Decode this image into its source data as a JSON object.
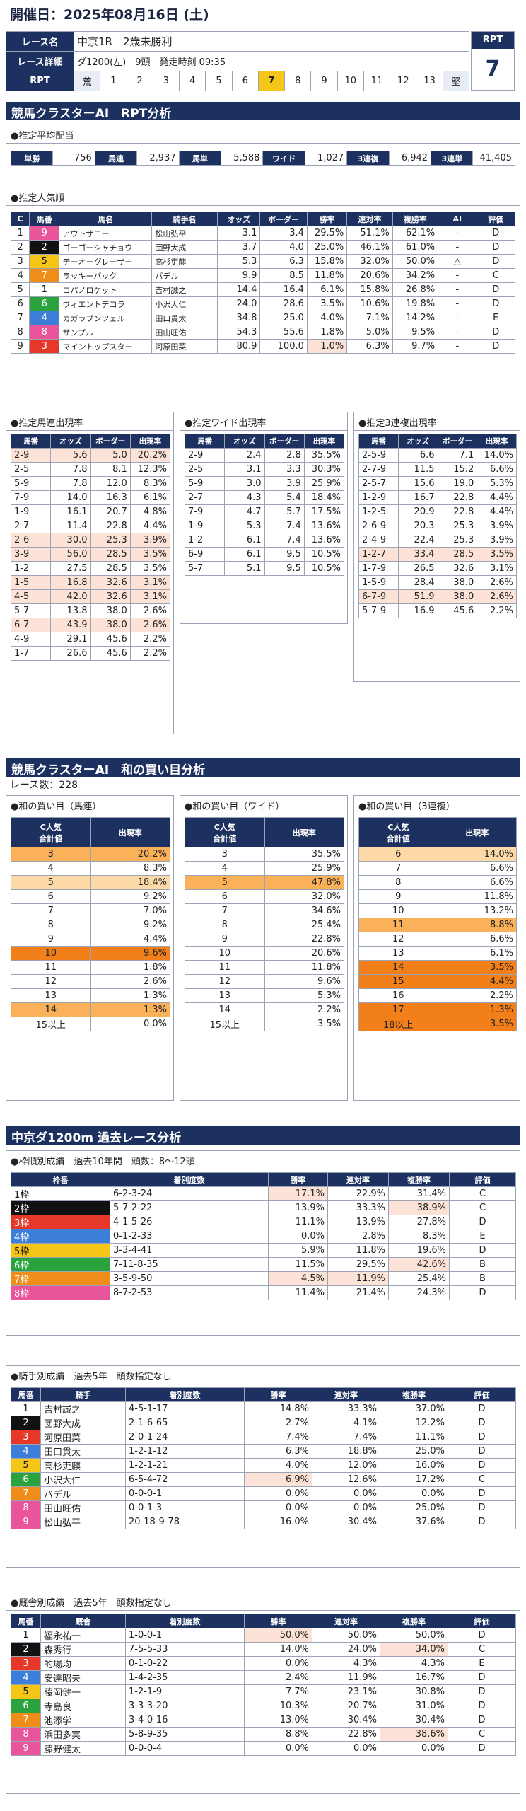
{
  "header": {
    "title": "開催日：2025年08月16日 (土)"
  },
  "race": {
    "label_name": "レース名",
    "name": "中京1R　2歳未勝利",
    "label_detail": "レース詳細",
    "detail": "ダ1200(左)　9頭　発走時刻 09:35",
    "label_rpt": "RPT",
    "scale": [
      "荒",
      "1",
      "2",
      "3",
      "4",
      "5",
      "6",
      "7",
      "8",
      "9",
      "10",
      "11",
      "12",
      "13",
      "堅"
    ],
    "rpt_head": "RPT",
    "rpt_value": "7",
    "selected": "7"
  },
  "colors": {
    "navy": "#1c3160",
    "waku": {
      "1": "#ffffff",
      "2": "#111111",
      "3": "#e53828",
      "4": "#3d7fd8",
      "5": "#f5c518",
      "6": "#2aa33f",
      "7": "#f08c1a",
      "8": "#e8559a"
    }
  },
  "rpt_section": {
    "title": "競馬クラスターAI　RPT分析",
    "payout_title": "●推定平均配当",
    "payout": [
      [
        "単勝",
        "756"
      ],
      [
        "馬連",
        "2,937"
      ],
      [
        "馬単",
        "5,588"
      ],
      [
        "ワイド",
        "1,027"
      ],
      [
        "3連複",
        "6,942"
      ],
      [
        "3連単",
        "41,405"
      ]
    ],
    "pop_title": "●推定人気順",
    "pop_headers": [
      "C",
      "馬番",
      "馬名",
      "騎手名",
      "オッズ",
      "ボーダー",
      "勝率",
      "連対率",
      "複勝率",
      "AI",
      "評価"
    ],
    "pop_rows": [
      [
        "1",
        "9",
        "アウトザロー",
        "松山弘平",
        "3.1",
        "3.4",
        "29.5%",
        "51.1%",
        "62.1%",
        "-",
        "D"
      ],
      [
        "2",
        "2",
        "ゴーゴーシャチョウ",
        "団野大成",
        "3.7",
        "4.0",
        "25.0%",
        "46.1%",
        "61.0%",
        "-",
        "D"
      ],
      [
        "3",
        "5",
        "テーオーグレーザー",
        "高杉吏麒",
        "5.3",
        "6.3",
        "15.8%",
        "32.0%",
        "50.0%",
        "△",
        "D"
      ],
      [
        "4",
        "7",
        "ラッキーバック",
        "バデル",
        "9.9",
        "8.5",
        "11.8%",
        "20.6%",
        "34.2%",
        "-",
        "C"
      ],
      [
        "5",
        "1",
        "コパノロケット",
        "吉村誠之",
        "14.4",
        "16.4",
        "6.1%",
        "15.8%",
        "26.8%",
        "-",
        "D"
      ],
      [
        "6",
        "6",
        "ヴィエントデコラ",
        "小沢大仁",
        "24.0",
        "28.6",
        "3.5%",
        "10.6%",
        "19.8%",
        "-",
        "D"
      ],
      [
        "7",
        "4",
        "カガラブンツェル",
        "田口貫太",
        "34.8",
        "25.0",
        "4.0%",
        "7.1%",
        "14.2%",
        "-",
        "E"
      ],
      [
        "8",
        "8",
        "サンプル",
        "田山旺佑",
        "54.3",
        "55.6",
        "1.8%",
        "5.0%",
        "9.5%",
        "-",
        "D"
      ],
      [
        "9",
        "3",
        "マイントップスター",
        "河原田菜",
        "80.9",
        "100.0",
        "1.0%",
        "6.3%",
        "9.7%",
        "-",
        "D"
      ]
    ],
    "umaren_title": "●推定馬連出現率",
    "wide_title": "●推定ワイド出現率",
    "sanfuku_title": "●推定3連複出現率",
    "mini_headers": [
      "馬番",
      "オッズ",
      "ボーダー",
      "出現率"
    ],
    "umaren": [
      [
        "2-9",
        "5.6",
        "5.0",
        "20.2%"
      ],
      [
        "2-5",
        "7.8",
        "8.1",
        "12.3%"
      ],
      [
        "5-9",
        "7.8",
        "12.0",
        "8.3%"
      ],
      [
        "7-9",
        "14.0",
        "16.3",
        "6.1%"
      ],
      [
        "1-9",
        "16.1",
        "20.7",
        "4.8%"
      ],
      [
        "2-7",
        "11.4",
        "22.8",
        "4.4%"
      ],
      [
        "2-6",
        "30.0",
        "25.3",
        "3.9%"
      ],
      [
        "3-9",
        "56.0",
        "28.5",
        "3.5%"
      ],
      [
        "1-2",
        "27.5",
        "28.5",
        "3.5%"
      ],
      [
        "1-5",
        "16.8",
        "32.6",
        "3.1%"
      ],
      [
        "4-5",
        "42.0",
        "32.6",
        "3.1%"
      ],
      [
        "5-7",
        "13.8",
        "38.0",
        "2.6%"
      ],
      [
        "6-7",
        "43.9",
        "38.0",
        "2.6%"
      ],
      [
        "4-9",
        "29.1",
        "45.6",
        "2.2%"
      ],
      [
        "1-7",
        "26.6",
        "45.6",
        "2.2%"
      ]
    ],
    "wide": [
      [
        "2-9",
        "2.4",
        "2.8",
        "35.5%"
      ],
      [
        "2-5",
        "3.1",
        "3.3",
        "30.3%"
      ],
      [
        "5-9",
        "3.0",
        "3.9",
        "25.9%"
      ],
      [
        "2-7",
        "4.3",
        "5.4",
        "18.4%"
      ],
      [
        "7-9",
        "4.7",
        "5.7",
        "17.5%"
      ],
      [
        "1-9",
        "5.3",
        "7.4",
        "13.6%"
      ],
      [
        "1-2",
        "6.1",
        "7.4",
        "13.6%"
      ],
      [
        "6-9",
        "6.1",
        "9.5",
        "10.5%"
      ],
      [
        "5-7",
        "5.1",
        "9.5",
        "10.5%"
      ]
    ],
    "sanfuku": [
      [
        "2-5-9",
        "6.6",
        "7.1",
        "14.0%"
      ],
      [
        "2-7-9",
        "11.5",
        "15.2",
        "6.6%"
      ],
      [
        "2-5-7",
        "15.6",
        "19.0",
        "5.3%"
      ],
      [
        "1-2-9",
        "16.7",
        "22.8",
        "4.4%"
      ],
      [
        "1-2-5",
        "20.9",
        "22.8",
        "4.4%"
      ],
      [
        "2-6-9",
        "20.3",
        "25.3",
        "3.9%"
      ],
      [
        "2-4-9",
        "22.4",
        "25.3",
        "3.9%"
      ],
      [
        "1-2-7",
        "33.4",
        "28.5",
        "3.5%"
      ],
      [
        "1-7-9",
        "26.5",
        "32.6",
        "3.1%"
      ],
      [
        "1-5-9",
        "28.4",
        "38.0",
        "2.6%"
      ],
      [
        "6-7-9",
        "51.9",
        "38.0",
        "2.6%"
      ],
      [
        "5-7-9",
        "16.9",
        "45.6",
        "2.2%"
      ]
    ]
  },
  "wa_section": {
    "title": "競馬クラスターAI　和の買い目分析",
    "race_count": "レース数：228",
    "umaren_title": "●和の買い目（馬連）",
    "wide_title": "●和の買い目（ワイド）",
    "sanfuku_title": "●和の買い目（3連複）",
    "head1": "C人気",
    "head2": "合計値",
    "head_rate": "出現率",
    "umaren": [
      [
        "3",
        "20.2%"
      ],
      [
        "4",
        "8.3%"
      ],
      [
        "5",
        "18.4%"
      ],
      [
        "6",
        "9.2%"
      ],
      [
        "7",
        "7.0%"
      ],
      [
        "8",
        "9.2%"
      ],
      [
        "9",
        "4.4%"
      ],
      [
        "10",
        "9.6%"
      ],
      [
        "11",
        "1.8%"
      ],
      [
        "12",
        "2.6%"
      ],
      [
        "13",
        "1.3%"
      ],
      [
        "14",
        "1.3%"
      ],
      [
        "15以上",
        "0.0%"
      ]
    ],
    "wide": [
      [
        "3",
        "35.5%"
      ],
      [
        "4",
        "25.9%"
      ],
      [
        "5",
        "47.8%"
      ],
      [
        "6",
        "32.0%"
      ],
      [
        "7",
        "34.6%"
      ],
      [
        "8",
        "25.4%"
      ],
      [
        "9",
        "22.8%"
      ],
      [
        "10",
        "20.6%"
      ],
      [
        "11",
        "11.8%"
      ],
      [
        "12",
        "9.6%"
      ],
      [
        "13",
        "5.3%"
      ],
      [
        "14",
        "2.2%"
      ],
      [
        "15以上",
        "3.5%"
      ]
    ],
    "sanfuku": [
      [
        "6",
        "14.0%"
      ],
      [
        "7",
        "6.6%"
      ],
      [
        "8",
        "6.6%"
      ],
      [
        "9",
        "11.8%"
      ],
      [
        "10",
        "13.2%"
      ],
      [
        "11",
        "8.8%"
      ],
      [
        "12",
        "6.6%"
      ],
      [
        "13",
        "6.1%"
      ],
      [
        "14",
        "3.5%"
      ],
      [
        "15",
        "4.4%"
      ],
      [
        "16",
        "2.2%"
      ],
      [
        "17",
        "1.3%"
      ],
      [
        "18以上",
        "3.5%"
      ]
    ]
  },
  "past_section": {
    "title": "中京ダ1200m 過去レース分析",
    "waku_title": "●枠順別成績　過去10年間　頭数：8～12頭",
    "waku_headers": [
      "枠番",
      "着別度数",
      "勝率",
      "連対率",
      "複勝率",
      "評価"
    ],
    "waku_rows": [
      [
        "1枠",
        "6-2-3-24",
        "17.1%",
        "22.9%",
        "31.4%",
        "C"
      ],
      [
        "2枠",
        "5-7-2-22",
        "13.9%",
        "33.3%",
        "38.9%",
        "C"
      ],
      [
        "3枠",
        "4-1-5-26",
        "11.1%",
        "13.9%",
        "27.8%",
        "D"
      ],
      [
        "4枠",
        "0-1-2-33",
        "0.0%",
        "2.8%",
        "8.3%",
        "E"
      ],
      [
        "5枠",
        "3-3-4-41",
        "5.9%",
        "11.8%",
        "19.6%",
        "D"
      ],
      [
        "6枠",
        "7-11-8-35",
        "11.5%",
        "29.5%",
        "42.6%",
        "B"
      ],
      [
        "7枠",
        "3-5-9-50",
        "4.5%",
        "11.9%",
        "25.4%",
        "B"
      ],
      [
        "8枠",
        "8-7-2-53",
        "11.4%",
        "21.4%",
        "24.3%",
        "D"
      ]
    ],
    "jockey_title": "●騎手別成績　過去5年　頭数指定なし",
    "jockey_headers": [
      "馬番",
      "騎手",
      "着別度数",
      "勝率",
      "連対率",
      "複勝率",
      "評価"
    ],
    "jockey_rows": [
      [
        "1",
        "吉村誠之",
        "4-5-1-17",
        "14.8%",
        "33.3%",
        "37.0%",
        "D"
      ],
      [
        "2",
        "団野大成",
        "2-1-6-65",
        "2.7%",
        "4.1%",
        "12.2%",
        "D"
      ],
      [
        "3",
        "河原田菜",
        "2-0-1-24",
        "7.4%",
        "7.4%",
        "11.1%",
        "D"
      ],
      [
        "4",
        "田口貫太",
        "1-2-1-12",
        "6.3%",
        "18.8%",
        "25.0%",
        "D"
      ],
      [
        "5",
        "高杉吏麒",
        "1-2-1-21",
        "4.0%",
        "12.0%",
        "16.0%",
        "D"
      ],
      [
        "6",
        "小沢大仁",
        "6-5-4-72",
        "6.9%",
        "12.6%",
        "17.2%",
        "C"
      ],
      [
        "7",
        "バデル",
        "0-0-0-1",
        "0.0%",
        "0.0%",
        "0.0%",
        "D"
      ],
      [
        "8",
        "田山旺佑",
        "0-0-1-3",
        "0.0%",
        "0.0%",
        "25.0%",
        "D"
      ],
      [
        "9",
        "松山弘平",
        "20-18-9-78",
        "16.0%",
        "30.4%",
        "37.6%",
        "D"
      ]
    ],
    "stable_title": "●厩舎別成績　過去5年　頭数指定なし",
    "stable_headers": [
      "馬番",
      "厩舎",
      "着別度数",
      "勝率",
      "連対率",
      "複勝率",
      "評価"
    ],
    "stable_rows": [
      [
        "1",
        "福永祐一",
        "1-0-0-1",
        "50.0%",
        "50.0%",
        "50.0%",
        "D"
      ],
      [
        "2",
        "森秀行",
        "7-5-5-33",
        "14.0%",
        "24.0%",
        "34.0%",
        "C"
      ],
      [
        "3",
        "的場均",
        "0-1-0-22",
        "0.0%",
        "4.3%",
        "4.3%",
        "E"
      ],
      [
        "4",
        "安達昭夫",
        "1-4-2-35",
        "2.4%",
        "11.9%",
        "16.7%",
        "D"
      ],
      [
        "5",
        "藤岡健一",
        "1-2-1-9",
        "7.7%",
        "23.1%",
        "30.8%",
        "D"
      ],
      [
        "6",
        "寺島良",
        "3-3-3-20",
        "10.3%",
        "20.7%",
        "31.0%",
        "D"
      ],
      [
        "7",
        "池添学",
        "3-4-0-16",
        "13.0%",
        "30.4%",
        "30.4%",
        "D"
      ],
      [
        "8",
        "浜田多実",
        "5-8-9-35",
        "8.8%",
        "22.8%",
        "38.6%",
        "C"
      ],
      [
        "9",
        "藤野健太",
        "0-0-0-4",
        "0.0%",
        "0.0%",
        "0.0%",
        "D"
      ]
    ]
  }
}
